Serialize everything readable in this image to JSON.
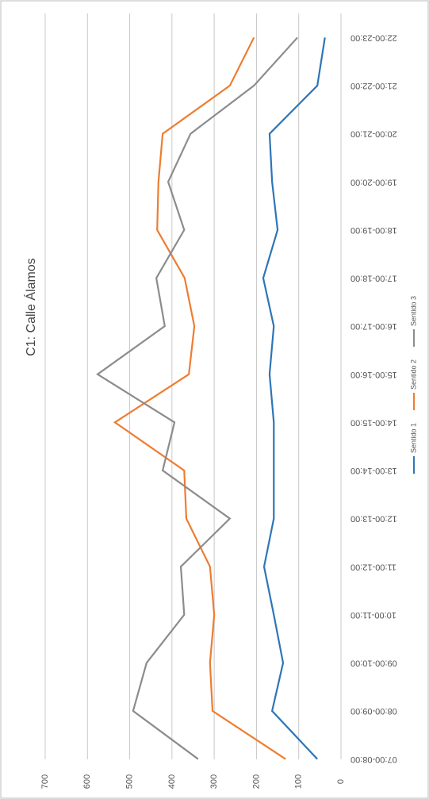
{
  "chart_data": {
    "type": "line",
    "title": "C1: Calle Álamos",
    "categories": [
      "07:00-08:00",
      "08:00-09:00",
      "09:00-10:00",
      "10:00-11:00",
      "11:00-12:00",
      "12:00-13:00",
      "13:00-14:00",
      "14:00-15:00",
      "15:00-16:00",
      "16:00-17:00",
      "17:00-18:00",
      "18:00-19:00",
      "19:00-20:00",
      "20:00-21:00",
      "21:00-22:00",
      "22:00-23:00"
    ],
    "series": [
      {
        "name": "Sentido 1",
        "color": "#2e75b6",
        "values": [
          56,
          163,
          137,
          159,
          182,
          159,
          159,
          159,
          169,
          159,
          184,
          150,
          163,
          169,
          56,
          38
        ]
      },
      {
        "name": "Sentido 2",
        "color": "#ed7d31",
        "values": [
          131,
          304,
          310,
          300,
          310,
          366,
          371,
          535,
          360,
          347,
          370,
          435,
          432,
          422,
          263,
          206
        ]
      },
      {
        "name": "Sentido 3",
        "color": "#8c8c8c",
        "values": [
          338,
          492,
          460,
          371,
          379,
          263,
          422,
          394,
          576,
          417,
          437,
          371,
          409,
          356,
          206,
          103
        ]
      }
    ],
    "ylim": [
      0,
      700
    ],
    "yticks": [
      0,
      100,
      200,
      300,
      400,
      500,
      600,
      700
    ],
    "grid": true
  }
}
